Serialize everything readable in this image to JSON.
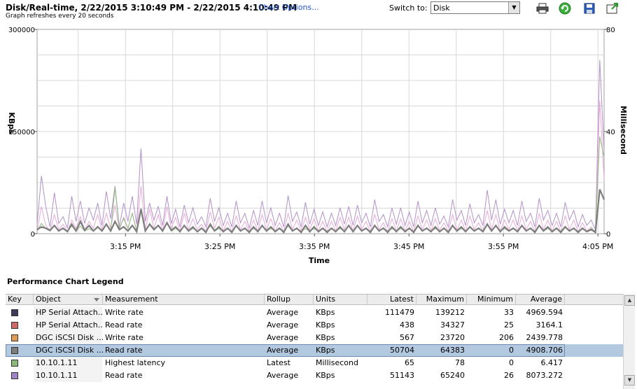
{
  "header": {
    "title": "Disk/Real-time, 2/22/2015 3:10:49 PM - 2/22/2015 4:10:49 PM",
    "chart_options_label": "Chart Options...",
    "refresh_text": "Graph refreshes every 20 seconds",
    "switch_label": "Switch to:",
    "switch_value": "Disk",
    "tools": [
      "print-icon",
      "refresh-icon",
      "save-icon",
      "popout-icon"
    ]
  },
  "chart_data": {
    "type": "line",
    "xlabel": "Time",
    "ylabel": "KBps",
    "y2label": "Millisecond",
    "ylim": [
      0,
      300000
    ],
    "y2lim": [
      0,
      80
    ],
    "yticks": [
      "300000",
      "150000",
      "0"
    ],
    "y2ticks": [
      "80",
      "40",
      "0"
    ],
    "xticks": [
      "3:15 PM",
      "3:25 PM",
      "3:35 PM",
      "3:45 PM",
      "3:55 PM",
      "4:05 PM"
    ],
    "grid": true,
    "series": [
      {
        "color": "#b291c8",
        "axis": "left",
        "values": [
          14000,
          85000,
          40000,
          10000,
          60000,
          15000,
          25000,
          8000,
          55000,
          18000,
          48000,
          15000,
          38000,
          20000,
          45000,
          12000,
          62000,
          22000,
          70000,
          10000,
          45000,
          18000,
          55000,
          14000,
          125000,
          18000,
          45000,
          20000,
          40000,
          12000,
          55000,
          15000,
          36000,
          10000,
          42000,
          16000,
          38000,
          14000,
          25000,
          10000,
          52000,
          18000,
          38000,
          12000,
          30000,
          10000,
          48000,
          16000,
          30000,
          8000,
          34000,
          12000,
          48000,
          16000,
          38000,
          12000,
          30000,
          10000,
          56000,
          18000,
          32000,
          10000,
          46000,
          14000,
          36000,
          12000,
          32000,
          10000,
          30000,
          12000,
          38000,
          14000,
          40000,
          12000,
          42000,
          16000,
          30000,
          10000,
          50000,
          18000,
          28000,
          10000,
          38000,
          14000,
          38000,
          12000,
          32000,
          10000,
          48000,
          16000,
          34000,
          12000,
          38000,
          14000,
          26000,
          10000,
          50000,
          20000,
          34000,
          12000,
          44000,
          16000,
          28000,
          12000,
          64000,
          20000,
          50000,
          14000,
          36000,
          16000,
          34000,
          12000,
          48000,
          18000,
          30000,
          10000,
          52000,
          20000,
          34000,
          12000,
          30000,
          10000,
          46000,
          20000,
          34000,
          10000,
          28000,
          12000,
          20000,
          6000,
          255000,
          120000
        ]
      },
      {
        "color": "#e8aad8",
        "axis": "left",
        "values": [
          3000,
          40000,
          12000,
          4000,
          28000,
          6000,
          14000,
          3000,
          20000,
          8000,
          25000,
          6000,
          18000,
          8000,
          28000,
          5000,
          30000,
          8000,
          42000,
          6000,
          24000,
          8000,
          30000,
          4000,
          70000,
          6000,
          36000,
          8000,
          28000,
          4000,
          40000,
          8000,
          24000,
          4000,
          30000,
          6000,
          22000,
          6000,
          14000,
          3000,
          32000,
          8000,
          24000,
          4000,
          18000,
          3000,
          26000,
          6000,
          18000,
          3000,
          20000,
          4000,
          28000,
          6000,
          22000,
          4000,
          16000,
          3000,
          30000,
          6000,
          20000,
          4000,
          24000,
          6000,
          22000,
          4000,
          18000,
          3000,
          18000,
          4000,
          24000,
          6000,
          24000,
          4000,
          26000,
          6000,
          18000,
          3000,
          28000,
          6000,
          16000,
          3000,
          22000,
          4000,
          22000,
          4000,
          18000,
          3000,
          26000,
          6000,
          20000,
          4000,
          22000,
          5000,
          16000,
          3000,
          28000,
          6000,
          20000,
          4000,
          26000,
          6000,
          16000,
          4000,
          34000,
          6000,
          28000,
          4000,
          20000,
          6000,
          20000,
          4000,
          26000,
          6000,
          18000,
          3000,
          30000,
          6000,
          20000,
          4000,
          18000,
          3000,
          26000,
          6000,
          20000,
          3000,
          16000,
          4000,
          10000,
          2000,
          195000,
          80000
        ]
      },
      {
        "color": "#8cb87a",
        "axis": "right",
        "values": [
          1,
          4,
          2,
          1,
          3,
          1,
          2,
          1,
          3,
          1,
          3,
          1,
          2,
          1,
          3,
          1,
          4,
          1,
          18,
          2,
          6,
          2,
          8,
          1,
          10,
          1,
          4,
          2,
          3,
          1,
          4,
          1,
          2,
          1,
          3,
          1,
          2,
          1,
          2,
          1,
          3,
          1,
          2,
          1,
          2,
          1,
          3,
          1,
          2,
          1,
          2,
          1,
          3,
          1,
          2,
          1,
          2,
          1,
          3,
          1,
          2,
          1,
          2,
          1,
          2,
          1,
          2,
          1,
          2,
          1,
          2,
          1,
          3,
          1,
          3,
          1,
          2,
          1,
          3,
          1,
          2,
          1,
          2,
          1,
          2,
          1,
          2,
          1,
          3,
          1,
          2,
          1,
          2,
          1,
          2,
          1,
          3,
          1,
          2,
          1,
          3,
          1,
          2,
          1,
          4,
          1,
          3,
          1,
          2,
          1,
          2,
          1,
          3,
          1,
          2,
          1,
          3,
          1,
          2,
          1,
          2,
          1,
          3,
          1,
          2,
          1,
          2,
          1,
          2,
          1,
          38,
          30
        ]
      },
      {
        "color": "#7d7d7d",
        "axis": "left",
        "values": [
          6000,
          10000,
          8000,
          5000,
          12000,
          4000,
          8000,
          3000,
          14000,
          4000,
          18000,
          5000,
          12000,
          4000,
          10000,
          4000,
          14000,
          4000,
          18000,
          6000,
          10000,
          4000,
          12000,
          3000,
          36000,
          4000,
          14000,
          6000,
          12000,
          4000,
          16000,
          5000,
          10000,
          3000,
          12000,
          4000,
          10000,
          3000,
          8000,
          2000,
          14000,
          4000,
          10000,
          3000,
          8000,
          2000,
          12000,
          4000,
          8000,
          2000,
          10000,
          3000,
          12000,
          4000,
          10000,
          3000,
          8000,
          2000,
          14000,
          4000,
          8000,
          2000,
          12000,
          3000,
          10000,
          3000,
          8000,
          2000,
          8000,
          3000,
          10000,
          3000,
          12000,
          3000,
          12000,
          4000,
          8000,
          2000,
          12000,
          4000,
          8000,
          2000,
          10000,
          3000,
          10000,
          3000,
          8000,
          2000,
          12000,
          4000,
          8000,
          3000,
          10000,
          3000,
          8000,
          2000,
          12000,
          4000,
          10000,
          3000,
          10000,
          4000,
          8000,
          3000,
          14000,
          4000,
          12000,
          3000,
          10000,
          4000,
          8000,
          3000,
          12000,
          4000,
          8000,
          2000,
          12000,
          4000,
          10000,
          3000,
          8000,
          2000,
          10000,
          4000,
          8000,
          2000,
          8000,
          3000,
          6000,
          2000,
          65000,
          50000
        ]
      }
    ]
  },
  "legend": {
    "title": "Performance Chart Legend",
    "columns": [
      "Key",
      "Object",
      "Measurement",
      "Rollup",
      "Units",
      "Latest",
      "Maximum",
      "Minimum",
      "Average"
    ],
    "rows": [
      {
        "color": "#3c3c5a",
        "object": "HP Serial Attach...",
        "measurement": "Write rate",
        "rollup": "Average",
        "units": "KBps",
        "latest": "111479",
        "maximum": "139212",
        "minimum": "33",
        "average": "4969.594",
        "selected": false
      },
      {
        "color": "#d06868",
        "object": "HP Serial Attach...",
        "measurement": "Read rate",
        "rollup": "Average",
        "units": "KBps",
        "latest": "438",
        "maximum": "34327",
        "minimum": "25",
        "average": "3164.1",
        "selected": false
      },
      {
        "color": "#e09a58",
        "object": "DGC iSCSI Disk ...",
        "measurement": "Write rate",
        "rollup": "Average",
        "units": "KBps",
        "latest": "567",
        "maximum": "23720",
        "minimum": "206",
        "average": "2439.778",
        "selected": false
      },
      {
        "color": "#7d7d7d",
        "object": "DGC iSCSI Disk ...",
        "measurement": "Read rate",
        "rollup": "Average",
        "units": "KBps",
        "latest": "50704",
        "maximum": "64383",
        "minimum": "0",
        "average": "4908.706",
        "selected": true
      },
      {
        "color": "#8cb87a",
        "object": "10.10.1.11",
        "measurement": "Highest latency",
        "rollup": "Latest",
        "units": "Millisecond",
        "latest": "65",
        "maximum": "78",
        "minimum": "0",
        "average": "6.417",
        "selected": false
      },
      {
        "color": "#a084c4",
        "object": "10.10.1.11",
        "measurement": "Read rate",
        "rollup": "Average",
        "units": "KBps",
        "latest": "51143",
        "maximum": "65240",
        "minimum": "26",
        "average": "8073.272",
        "selected": false
      }
    ]
  }
}
